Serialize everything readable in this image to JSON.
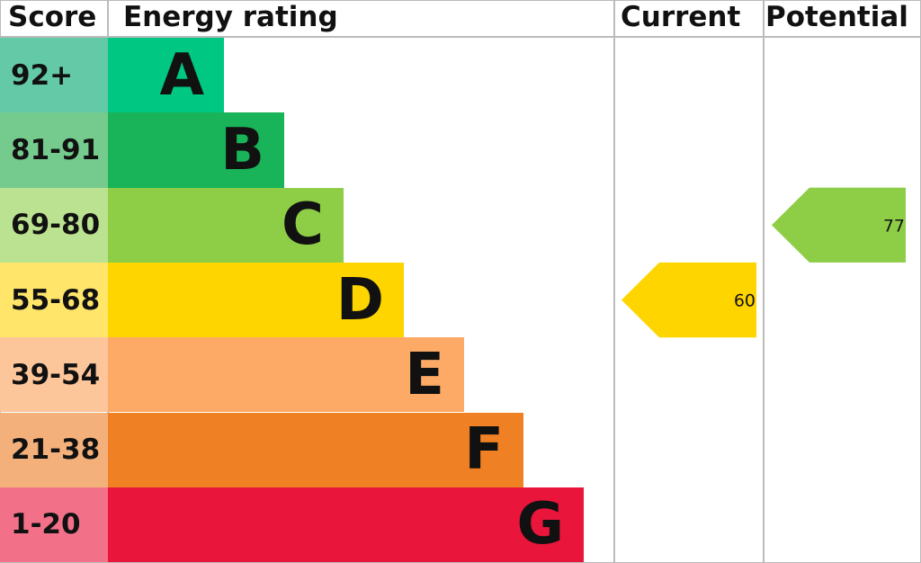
{
  "headers": {
    "score": "Score",
    "rating": "Energy rating",
    "current": "Current",
    "potential": "Potential"
  },
  "chart_data": {
    "type": "bar",
    "bands": [
      {
        "letter": "A",
        "range": "92+",
        "color": "#00c781",
        "score_bg": "#64c9a6"
      },
      {
        "letter": "B",
        "range": "81-91",
        "color": "#19b459",
        "score_bg": "#75cb8e"
      },
      {
        "letter": "C",
        "range": "69-80",
        "color": "#8dce46",
        "score_bg": "#bbe290"
      },
      {
        "letter": "D",
        "range": "55-68",
        "color": "#ffd500",
        "score_bg": "#ffe66b"
      },
      {
        "letter": "E",
        "range": "39-54",
        "color": "#fcaa65",
        "score_bg": "#fdc59a"
      },
      {
        "letter": "F",
        "range": "21-38",
        "color": "#ef8023",
        "score_bg": "#f4b07b"
      },
      {
        "letter": "G",
        "range": "1-20",
        "color": "#e9153b",
        "score_bg": "#f27189"
      }
    ],
    "current": {
      "value": "60",
      "band": "D",
      "color": "#ffd500"
    },
    "potential": {
      "value": "77",
      "band": "C",
      "color": "#8dce46"
    }
  }
}
